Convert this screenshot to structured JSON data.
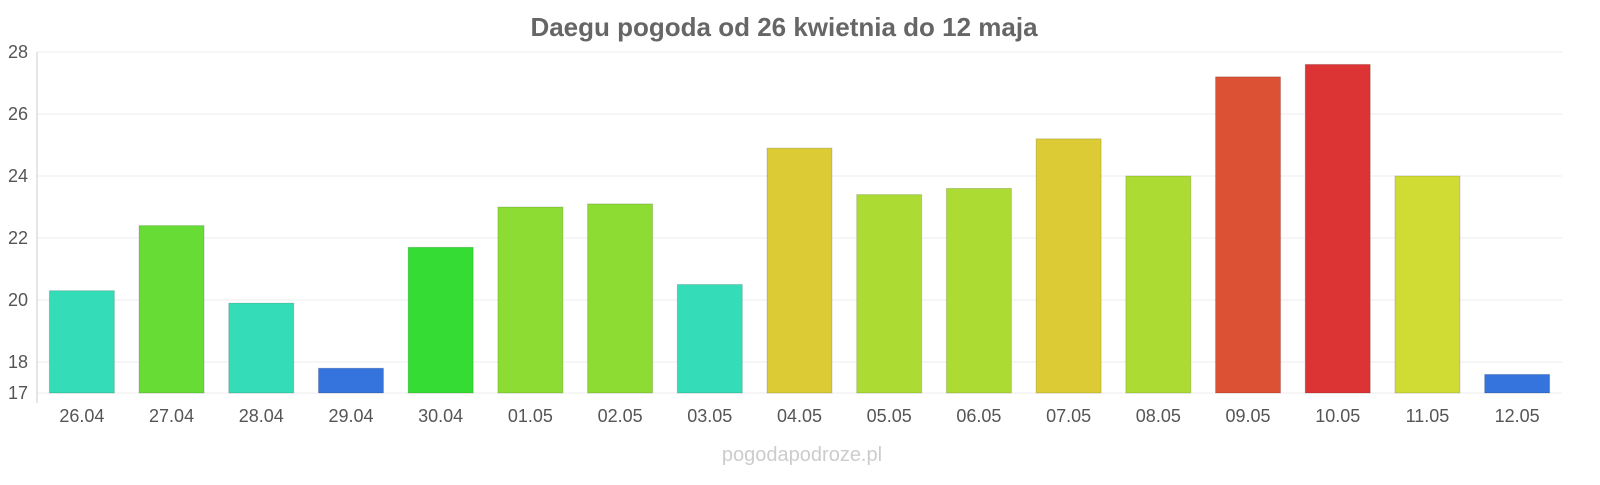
{
  "chart_data": {
    "type": "bar",
    "title": "Daegu pogoda od 26 kwietnia do 12 maja",
    "xlabel": "",
    "ylabel": "",
    "ylim": [
      17,
      28
    ],
    "yticks": [
      17,
      18,
      20,
      22,
      24,
      26,
      28
    ],
    "grid": true,
    "categories": [
      "26.04",
      "27.04",
      "28.04",
      "29.04",
      "30.04",
      "01.05",
      "02.05",
      "03.05",
      "04.05",
      "05.05",
      "06.05",
      "07.05",
      "08.05",
      "09.05",
      "10.05",
      "11.05",
      "12.05"
    ],
    "values": [
      20.3,
      22.4,
      19.9,
      17.8,
      21.7,
      23.0,
      23.1,
      20.5,
      24.9,
      23.4,
      23.6,
      25.2,
      24.0,
      27.2,
      27.6,
      24.0,
      17.6
    ],
    "colors": [
      "#34dcb8",
      "#66dc34",
      "#34dcb8",
      "#3474dc",
      "#34dc34",
      "#8cdc34",
      "#8cdc34",
      "#34dcb8",
      "#dccb34",
      "#acdc34",
      "#acdc34",
      "#dccb34",
      "#acdc34",
      "#dc5034",
      "#dc3434",
      "#d0dc34",
      "#3474dc"
    ]
  },
  "watermark": "pogodapodroze.pl"
}
